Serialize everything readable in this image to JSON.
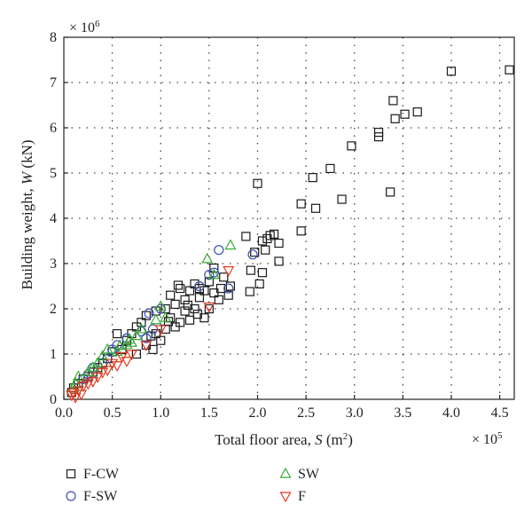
{
  "chart_data": {
    "type": "scatter",
    "title": "",
    "xlabel": "Total floor area, S (m²)",
    "xlabel_parts": {
      "prefix": "Total floor area, ",
      "var": "S",
      "unit_open": " (m",
      "sup": "2",
      "unit_close": ")"
    },
    "ylabel": "Building weight, W (kN)",
    "ylabel_parts": {
      "prefix": "Building weight, ",
      "var": "W",
      "suffix": " (kN)"
    },
    "x_multiplier": {
      "base": "× 10",
      "exp": "5"
    },
    "y_multiplier": {
      "base": "× 10",
      "exp": "6"
    },
    "xlim": [
      0,
      4.65
    ],
    "ylim": [
      0,
      8
    ],
    "x_ticks": [
      "0.0",
      "0.5",
      "1.0",
      "1.5",
      "2.0",
      "2.5",
      "3.0",
      "3.5",
      "4.0",
      "4.5"
    ],
    "x_tick_values": [
      0,
      0.5,
      1.0,
      1.5,
      2.0,
      2.5,
      3.0,
      3.5,
      4.0,
      4.5
    ],
    "y_ticks": [
      "0",
      "1",
      "2",
      "3",
      "4",
      "5",
      "6",
      "7",
      "8"
    ],
    "y_tick_values": [
      0,
      1,
      2,
      3,
      4,
      5,
      6,
      7,
      8
    ],
    "grid": true,
    "legend_position": "bottom",
    "series": [
      {
        "name": "F-CW",
        "marker": "square",
        "color": "#1a1a1a",
        "points": [
          [
            4.6,
            7.28
          ],
          [
            4.0,
            7.25
          ],
          [
            3.65,
            6.35
          ],
          [
            3.52,
            6.3
          ],
          [
            3.4,
            6.6
          ],
          [
            3.42,
            6.2
          ],
          [
            3.25,
            5.9
          ],
          [
            3.25,
            5.8
          ],
          [
            2.97,
            5.6
          ],
          [
            2.75,
            5.1
          ],
          [
            2.57,
            4.9
          ],
          [
            2.45,
            4.32
          ],
          [
            2.6,
            4.22
          ],
          [
            2.87,
            4.42
          ],
          [
            3.37,
            4.58
          ],
          [
            2.0,
            4.77
          ],
          [
            2.45,
            3.72
          ],
          [
            2.05,
            3.5
          ],
          [
            2.13,
            3.62
          ],
          [
            2.17,
            3.65
          ],
          [
            2.1,
            3.55
          ],
          [
            2.22,
            3.45
          ],
          [
            2.08,
            3.3
          ],
          [
            1.97,
            3.25
          ],
          [
            1.88,
            3.6
          ],
          [
            2.22,
            3.05
          ],
          [
            2.05,
            2.8
          ],
          [
            1.93,
            2.85
          ],
          [
            2.02,
            2.55
          ],
          [
            1.92,
            2.38
          ],
          [
            1.72,
            2.5
          ],
          [
            1.65,
            2.7
          ],
          [
            1.55,
            2.9
          ],
          [
            1.7,
            2.3
          ],
          [
            1.6,
            2.2
          ],
          [
            1.5,
            2.6
          ],
          [
            1.45,
            2.4
          ],
          [
            1.35,
            2.55
          ],
          [
            1.2,
            2.45
          ],
          [
            1.3,
            2.4
          ],
          [
            1.25,
            2.2
          ],
          [
            1.4,
            2.25
          ],
          [
            1.1,
            2.3
          ],
          [
            1.15,
            2.1
          ],
          [
            1.05,
            2.0
          ],
          [
            1.25,
            1.95
          ],
          [
            1.35,
            2.0
          ],
          [
            1.3,
            1.75
          ],
          [
            1.45,
            1.8
          ],
          [
            1.2,
            1.7
          ],
          [
            1.15,
            1.6
          ],
          [
            1.05,
            1.55
          ],
          [
            0.95,
            1.45
          ],
          [
            0.9,
            1.4
          ],
          [
            0.85,
            1.85
          ],
          [
            0.8,
            1.7
          ],
          [
            0.75,
            1.6
          ],
          [
            0.7,
            1.45
          ],
          [
            0.65,
            1.3
          ],
          [
            0.6,
            1.1
          ],
          [
            0.55,
            1.45
          ],
          [
            0.5,
            1.05
          ],
          [
            0.45,
            0.9
          ],
          [
            0.4,
            0.8
          ],
          [
            0.35,
            0.7
          ],
          [
            0.3,
            0.6
          ],
          [
            0.25,
            0.5
          ],
          [
            0.2,
            0.45
          ],
          [
            0.15,
            0.35
          ],
          [
            0.1,
            0.25
          ],
          [
            0.08,
            0.15
          ],
          [
            1.0,
            1.3
          ],
          [
            1.1,
            1.8
          ],
          [
            0.95,
            1.95
          ],
          [
            1.4,
            2.45
          ],
          [
            1.55,
            2.35
          ],
          [
            1.62,
            2.45
          ],
          [
            1.5,
            2.0
          ],
          [
            0.85,
            1.2
          ],
          [
            0.75,
            1.0
          ],
          [
            0.92,
            1.1
          ],
          [
            1.08,
            1.72
          ],
          [
            1.28,
            2.08
          ],
          [
            1.38,
            1.88
          ],
          [
            1.18,
            2.52
          ]
        ]
      },
      {
        "name": "F-SW",
        "marker": "circle",
        "color": "#3a4fb0",
        "points": [
          [
            1.6,
            3.3
          ],
          [
            1.95,
            3.2
          ],
          [
            1.7,
            2.45
          ],
          [
            1.5,
            2.75
          ],
          [
            1.4,
            2.5
          ],
          [
            1.0,
            2.0
          ],
          [
            0.88,
            1.9
          ],
          [
            0.8,
            1.5
          ],
          [
            0.85,
            1.35
          ],
          [
            0.55,
            1.2
          ],
          [
            0.5,
            1.1
          ],
          [
            0.3,
            0.7
          ],
          [
            0.25,
            0.55
          ],
          [
            0.2,
            0.45
          ],
          [
            0.45,
            0.9
          ],
          [
            0.65,
            1.35
          ],
          [
            0.92,
            1.55
          ],
          [
            1.55,
            2.8
          ]
        ]
      },
      {
        "name": "SW",
        "marker": "triangle",
        "color": "#3aaa35",
        "points": [
          [
            1.72,
            3.4
          ],
          [
            1.48,
            3.1
          ],
          [
            1.55,
            2.75
          ],
          [
            1.0,
            2.05
          ],
          [
            1.05,
            1.8
          ],
          [
            0.95,
            1.75
          ],
          [
            0.8,
            1.55
          ],
          [
            0.75,
            1.4
          ],
          [
            0.7,
            1.25
          ],
          [
            0.65,
            1.2
          ],
          [
            0.55,
            1.05
          ],
          [
            0.45,
            1.1
          ],
          [
            0.4,
            0.95
          ],
          [
            0.35,
            0.8
          ],
          [
            0.3,
            0.7
          ],
          [
            0.25,
            0.6
          ],
          [
            0.15,
            0.5
          ],
          [
            0.12,
            0.35
          ],
          [
            0.1,
            0.25
          ],
          [
            0.68,
            1.32
          ],
          [
            0.58,
            1.18
          ]
        ]
      },
      {
        "name": "F",
        "marker": "triangle-down",
        "color": "#e03a20",
        "points": [
          [
            1.7,
            2.85
          ],
          [
            1.5,
            2.05
          ],
          [
            1.0,
            1.55
          ],
          [
            0.85,
            1.2
          ],
          [
            0.7,
            1.0
          ],
          [
            0.6,
            0.95
          ],
          [
            0.55,
            0.75
          ],
          [
            0.5,
            0.8
          ],
          [
            0.45,
            0.65
          ],
          [
            0.4,
            0.6
          ],
          [
            0.35,
            0.5
          ],
          [
            0.3,
            0.4
          ],
          [
            0.25,
            0.35
          ],
          [
            0.2,
            0.3
          ],
          [
            0.15,
            0.2
          ],
          [
            0.1,
            0.15
          ],
          [
            0.08,
            0.1
          ],
          [
            0.12,
            0.05
          ],
          [
            0.18,
            0.12
          ],
          [
            0.65,
            0.85
          ]
        ]
      }
    ]
  }
}
